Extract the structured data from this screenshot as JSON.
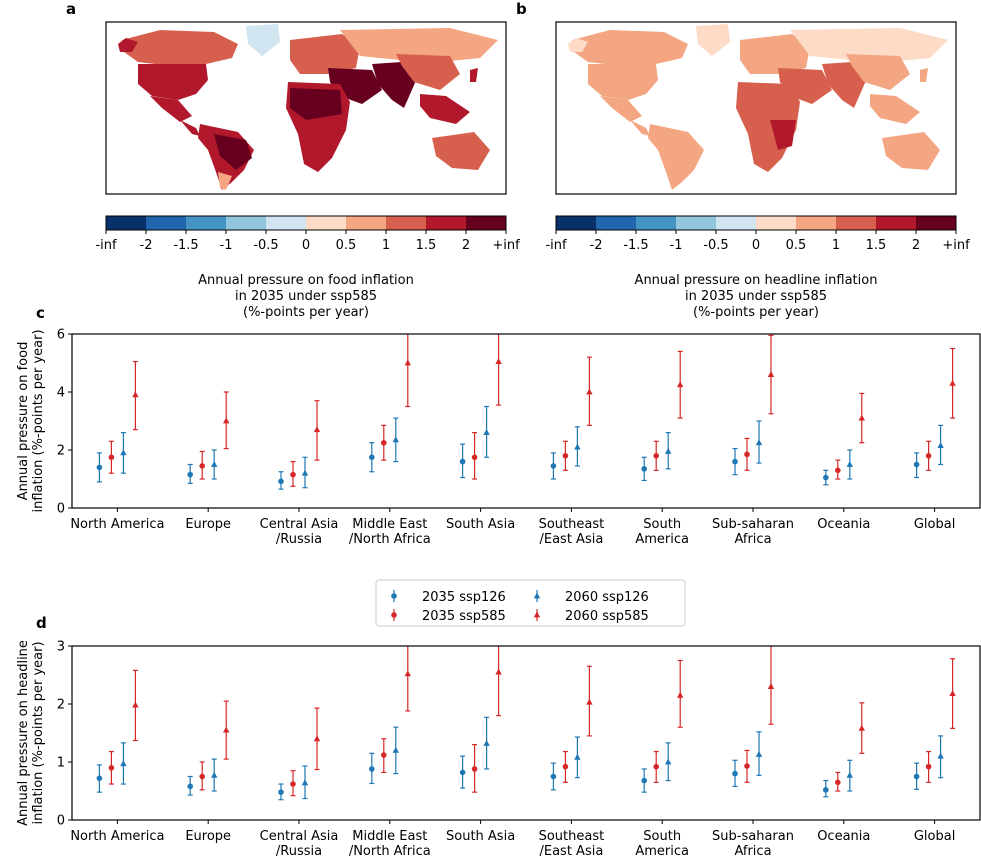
{
  "panels": {
    "a": {
      "letter": "a",
      "colorbar_label": [
        "Annual pressure on food inflation",
        "in 2035 under ssp585",
        "(%-points per year)"
      ]
    },
    "b": {
      "letter": "b",
      "colorbar_label": [
        "Annual pressure on headline inflation",
        "in 2035 under ssp585",
        "(%-points per year)"
      ]
    },
    "c": {
      "letter": "c"
    },
    "d": {
      "letter": "d"
    }
  },
  "colorbar": {
    "ticks": [
      "-inf",
      "-2",
      "-1.5",
      "-1",
      "-0.5",
      "0",
      "0.5",
      "1",
      "1.5",
      "2",
      "+inf"
    ],
    "colors": [
      "#08306b",
      "#2166ac",
      "#4393c3",
      "#92c5de",
      "#d1e5f0",
      "#fddbc7",
      "#f4a582",
      "#d6604d",
      "#b2182b",
      "#67001f"
    ]
  },
  "legend": {
    "entries": [
      {
        "label": "2035 ssp126",
        "color": "#1f77b4",
        "marker": "circle"
      },
      {
        "label": "2035 ssp585",
        "color": "#d62728",
        "marker": "circle"
      },
      {
        "label": "2060 ssp126",
        "color": "#1f77b4",
        "marker": "triangle"
      },
      {
        "label": "2060 ssp585",
        "color": "#d62728",
        "marker": "triangle"
      }
    ]
  },
  "chart_data": [
    {
      "id": "c",
      "type": "scatter",
      "ylabel": [
        "Annual pressure on food",
        "inflation (%-points per year)"
      ],
      "ylim": [
        0,
        6
      ],
      "yticks": [
        "0",
        "2",
        "4",
        "6"
      ],
      "categories": [
        "North America",
        "Europe",
        "Central Asia\n/Russia",
        "Middle East\n/North Africa",
        "South Asia",
        "Southeast\n/East Asia",
        "South\nAmerica",
        "Sub-saharan\nAfrica",
        "Oceania",
        "Global"
      ],
      "series": [
        {
          "name": "2035 ssp126",
          "color": "#1f77b4",
          "marker": "circle",
          "values": [
            1.4,
            1.15,
            0.92,
            1.75,
            1.6,
            1.45,
            1.35,
            1.6,
            1.05,
            1.5
          ],
          "low": [
            0.9,
            0.85,
            0.65,
            1.25,
            1.05,
            1.0,
            0.95,
            1.15,
            0.8,
            1.05
          ],
          "high": [
            1.9,
            1.5,
            1.25,
            2.25,
            2.2,
            1.9,
            1.75,
            2.05,
            1.3,
            1.9
          ]
        },
        {
          "name": "2035 ssp585",
          "color": "#d62728",
          "marker": "circle",
          "values": [
            1.75,
            1.45,
            1.15,
            2.25,
            1.75,
            1.8,
            1.8,
            1.85,
            1.3,
            1.8
          ],
          "low": [
            1.2,
            1.0,
            0.75,
            1.65,
            1.0,
            1.3,
            1.3,
            1.3,
            1.0,
            1.3
          ],
          "high": [
            2.3,
            1.95,
            1.6,
            2.85,
            2.6,
            2.3,
            2.3,
            2.4,
            1.65,
            2.3
          ]
        },
        {
          "name": "2060 ssp126",
          "color": "#1f77b4",
          "marker": "triangle",
          "values": [
            1.9,
            1.5,
            1.2,
            2.35,
            2.6,
            2.1,
            1.95,
            2.25,
            1.5,
            2.15
          ],
          "low": [
            1.2,
            1.0,
            0.7,
            1.6,
            1.75,
            1.45,
            1.35,
            1.55,
            1.0,
            1.5
          ],
          "high": [
            2.6,
            2.0,
            1.75,
            3.1,
            3.5,
            2.8,
            2.6,
            3.0,
            2.0,
            2.85
          ]
        },
        {
          "name": "2060 ssp585",
          "color": "#d62728",
          "marker": "triangle",
          "values": [
            3.9,
            3.0,
            2.7,
            5.0,
            5.05,
            4.0,
            4.25,
            4.6,
            3.1,
            4.3
          ],
          "low": [
            2.7,
            2.05,
            1.65,
            3.5,
            3.55,
            2.85,
            3.1,
            3.25,
            2.25,
            3.1
          ],
          "high": [
            5.05,
            4.0,
            3.7,
            6.6,
            6.6,
            5.2,
            5.4,
            5.95,
            3.95,
            5.5
          ]
        }
      ]
    },
    {
      "id": "d",
      "type": "scatter",
      "ylabel": [
        "Annual pressure on headline",
        "inflation (%-points per year)"
      ],
      "ylim": [
        0,
        3
      ],
      "yticks": [
        "0",
        "1",
        "2",
        "3"
      ],
      "categories": [
        "North America",
        "Europe",
        "Central Asia\n/Russia",
        "Middle East\n/North Africa",
        "South Asia",
        "Southeast\n/East Asia",
        "South\nAmerica",
        "Sub-saharan\nAfrica",
        "Oceania",
        "Global"
      ],
      "series": [
        {
          "name": "2035 ssp126",
          "color": "#1f77b4",
          "marker": "circle",
          "values": [
            0.72,
            0.58,
            0.48,
            0.88,
            0.82,
            0.75,
            0.68,
            0.8,
            0.52,
            0.75
          ],
          "low": [
            0.48,
            0.43,
            0.35,
            0.63,
            0.55,
            0.52,
            0.48,
            0.58,
            0.4,
            0.53
          ],
          "high": [
            0.95,
            0.75,
            0.62,
            1.15,
            1.1,
            0.98,
            0.88,
            1.03,
            0.68,
            0.98
          ]
        },
        {
          "name": "2035 ssp585",
          "color": "#d62728",
          "marker": "circle",
          "values": [
            0.9,
            0.75,
            0.62,
            1.12,
            0.88,
            0.92,
            0.92,
            0.93,
            0.65,
            0.92
          ],
          "low": [
            0.62,
            0.52,
            0.42,
            0.82,
            0.48,
            0.65,
            0.65,
            0.65,
            0.5,
            0.65
          ],
          "high": [
            1.18,
            1.0,
            0.85,
            1.4,
            1.3,
            1.18,
            1.18,
            1.2,
            0.82,
            1.18
          ]
        },
        {
          "name": "2060 ssp126",
          "color": "#1f77b4",
          "marker": "triangle",
          "values": [
            0.97,
            0.77,
            0.64,
            1.2,
            1.32,
            1.08,
            1.0,
            1.13,
            0.77,
            1.1
          ],
          "low": [
            0.62,
            0.5,
            0.37,
            0.8,
            0.88,
            0.73,
            0.68,
            0.77,
            0.5,
            0.73
          ],
          "high": [
            1.33,
            1.05,
            0.93,
            1.6,
            1.77,
            1.43,
            1.33,
            1.52,
            1.03,
            1.45
          ]
        },
        {
          "name": "2060 ssp585",
          "color": "#d62728",
          "marker": "triangle",
          "values": [
            1.98,
            1.55,
            1.4,
            2.52,
            2.55,
            2.03,
            2.15,
            2.3,
            1.58,
            2.18
          ],
          "low": [
            1.37,
            1.05,
            0.87,
            1.88,
            1.8,
            1.45,
            1.6,
            1.65,
            1.15,
            1.58
          ],
          "high": [
            2.58,
            2.05,
            1.93,
            3.25,
            3.3,
            2.65,
            2.75,
            3.05,
            2.02,
            2.78
          ]
        }
      ]
    }
  ]
}
